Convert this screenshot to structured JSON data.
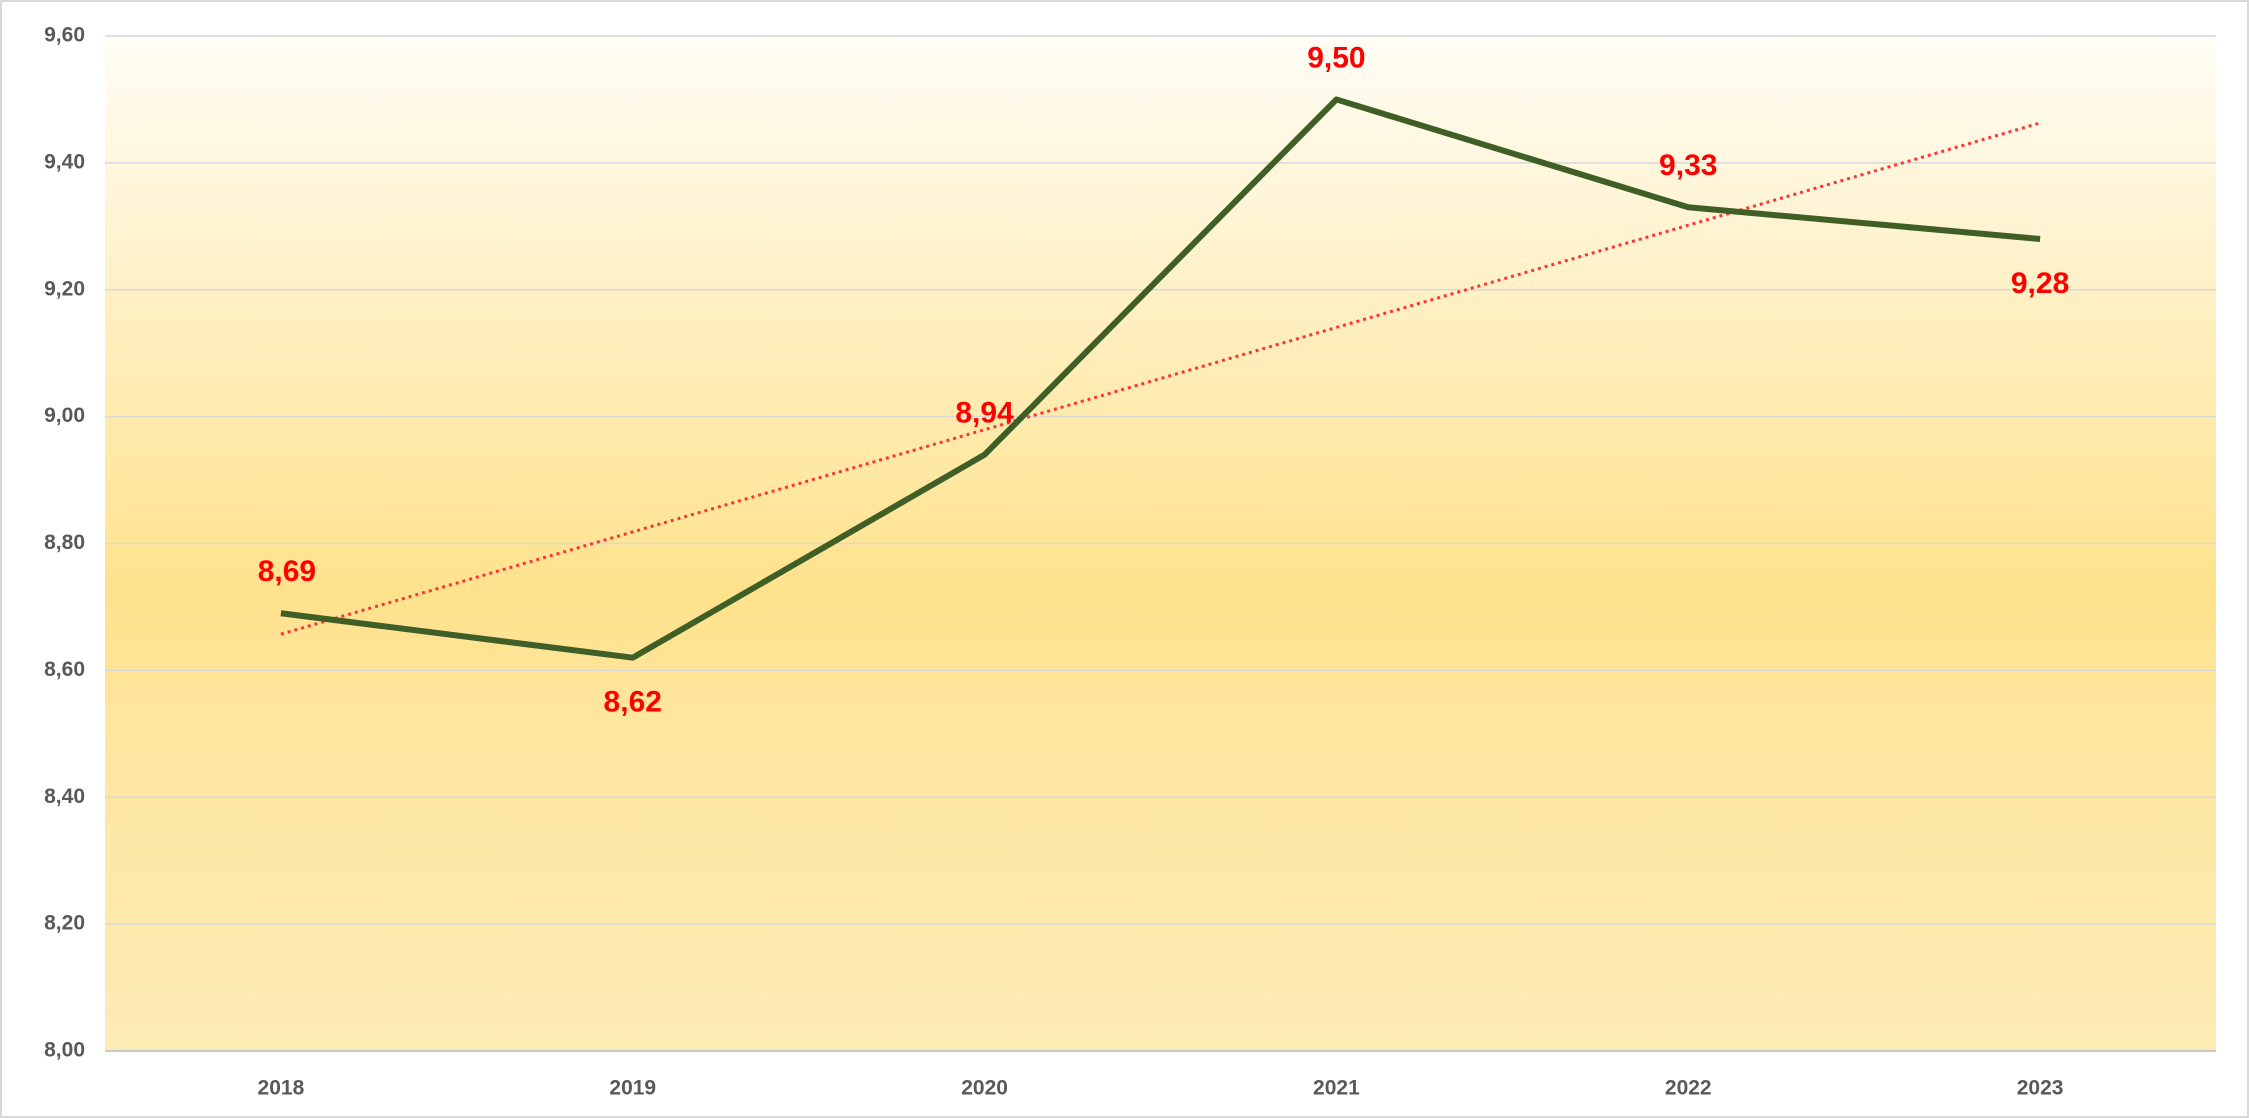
{
  "chart_data": {
    "type": "line",
    "categories": [
      "2018",
      "2019",
      "2020",
      "2021",
      "2022",
      "2023"
    ],
    "series": [
      {
        "name": null,
        "color": "#3f5f27",
        "values": [
          8.69,
          8.62,
          8.94,
          9.5,
          9.33,
          9.28
        ],
        "value_labels": [
          "8,69",
          "8,62",
          "8,94",
          "9,50",
          "9,33",
          "9,28"
        ]
      }
    ],
    "value_label_color": "#ff0000",
    "trendline": {
      "type": "linear",
      "color": "#ff3333"
    },
    "ylim": [
      8.0,
      9.6
    ],
    "yticks": [
      {
        "value": 8.0,
        "label": "8,00"
      },
      {
        "value": 8.2,
        "label": "8,20"
      },
      {
        "value": 8.4,
        "label": "8,40"
      },
      {
        "value": 8.6,
        "label": "8,60"
      },
      {
        "value": 8.8,
        "label": "8,80"
      },
      {
        "value": 9.0,
        "label": "9,00"
      },
      {
        "value": 9.2,
        "label": "9,20"
      },
      {
        "value": 9.4,
        "label": "9,40"
      },
      {
        "value": 9.6,
        "label": "9,60"
      }
    ],
    "grid": true
  }
}
